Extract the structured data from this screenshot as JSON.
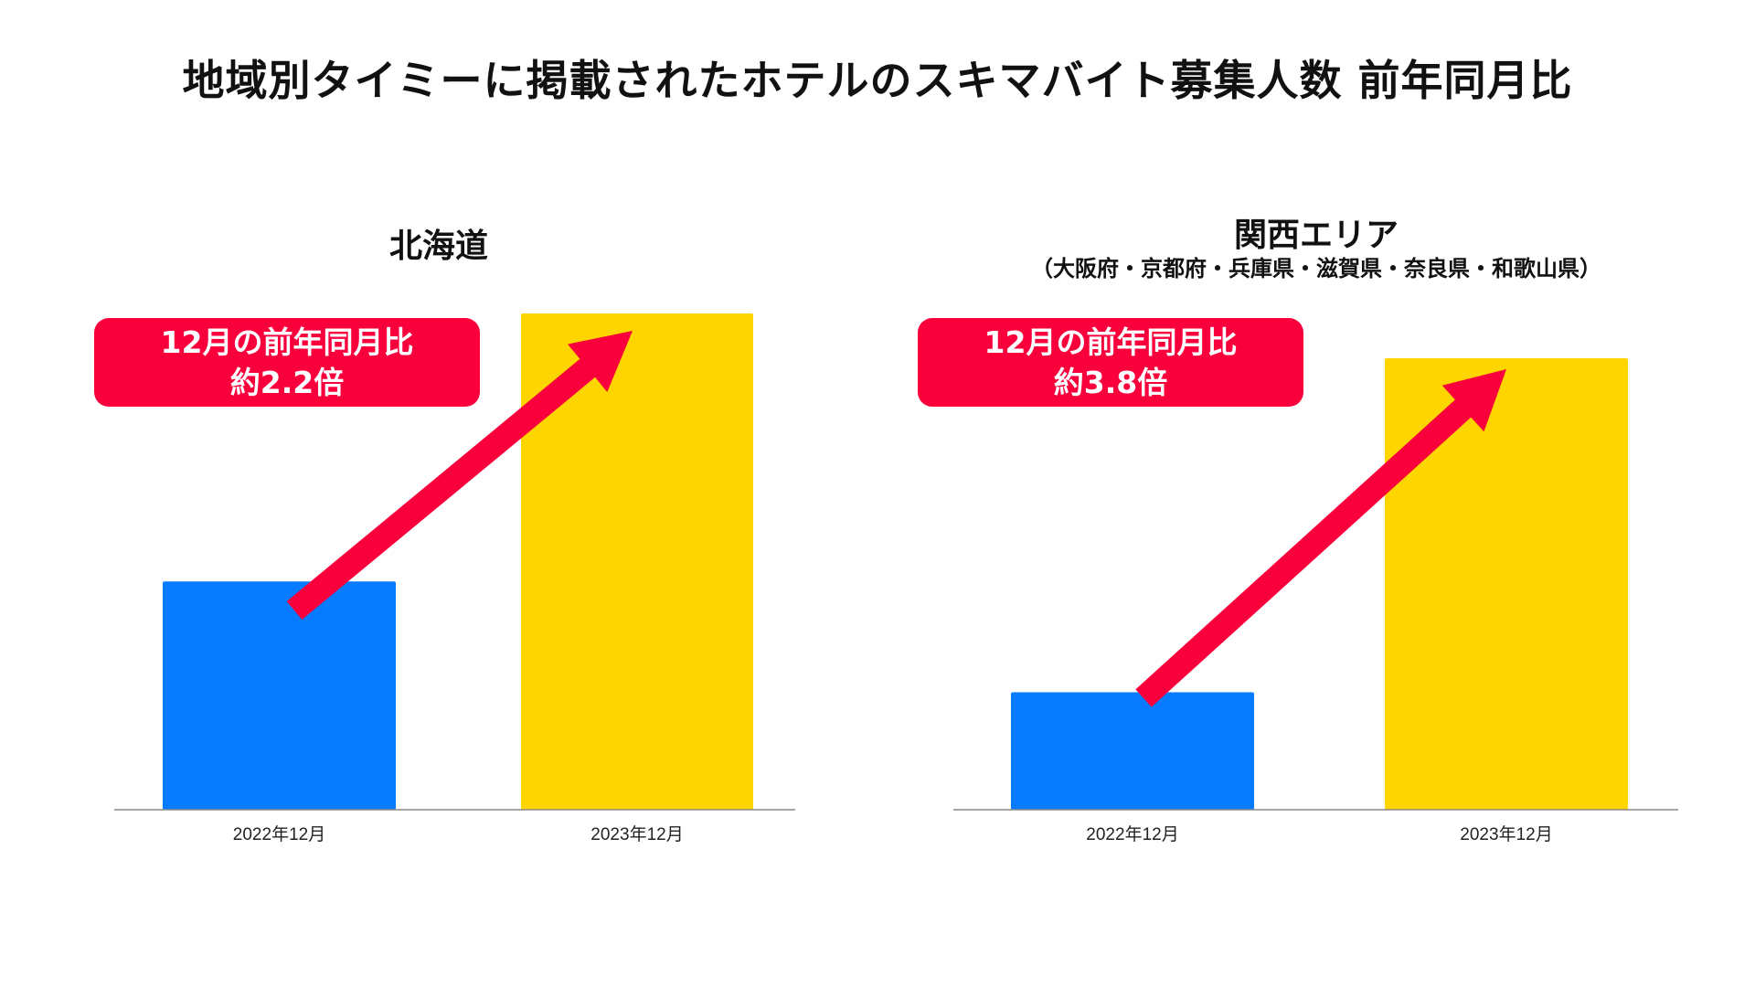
{
  "title": "地域別タイミーに掲載されたホテルのスキマバイト募集人数 前年同月比",
  "colors": {
    "bar_2022": "#077bff",
    "bar_2023": "#ffd500",
    "accent": "#f9003d",
    "axis": "#888888"
  },
  "chart_data": [
    {
      "type": "bar",
      "title": "北海道",
      "subtitle": "",
      "categories": [
        "2022年12月",
        "2023年12月"
      ],
      "values": [
        46,
        100
      ],
      "ylim": [
        0,
        100
      ],
      "grid": false,
      "annotation": {
        "line1": "12月の前年同月比",
        "line2": "約2.2倍",
        "arrow": "from first bar to second bar"
      }
    },
    {
      "type": "bar",
      "title": "関西エリア",
      "subtitle": "（大阪府・京都府・兵庫県・滋賀県・奈良県・和歌山県）",
      "categories": [
        "2022年12月",
        "2023年12月"
      ],
      "values": [
        26,
        100
      ],
      "ylim": [
        0,
        100
      ],
      "grid": false,
      "annotation": {
        "line1": "12月の前年同月比",
        "line2": "約3.8倍",
        "arrow": "from first bar to second bar"
      }
    }
  ]
}
